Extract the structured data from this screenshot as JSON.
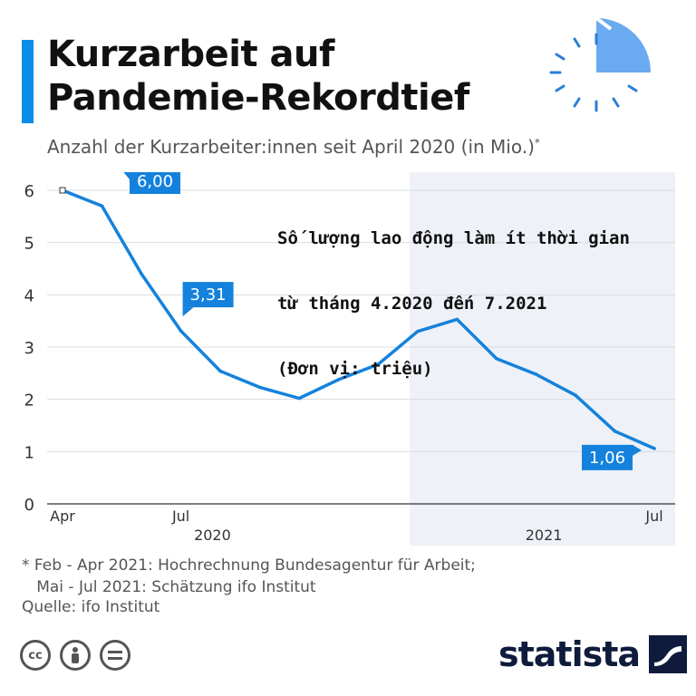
{
  "header": {
    "title_line1": "Kurzarbeit auf",
    "title_line2": "Pandemie-Rekordtief",
    "subtitle": "Anzahl der Kurzarbeiter:innen seit April 2020 (in Mio.)",
    "subtitle_mark": "*"
  },
  "annotation": {
    "line1": "Số lượng lao động làm ít thời gian",
    "line2": "từ tháng 4.2020 đến 7.2021",
    "line3": "(Đơn vị: triệu)"
  },
  "colors": {
    "line": "#1482dc",
    "accent": "#0c8ce9",
    "highlight_band": "#eef1f7",
    "brand": "#0f1b3d"
  },
  "chart_data": {
    "type": "line",
    "x": [
      "Apr 2020",
      "May 2020",
      "Jun 2020",
      "Jul 2020",
      "Aug 2020",
      "Sep 2020",
      "Oct 2020",
      "Nov 2020",
      "Dec 2020",
      "Jan 2021",
      "Feb 2021",
      "Mar 2021",
      "Apr 2021",
      "May 2021",
      "Jun 2021",
      "Jul 2021"
    ],
    "series": [
      {
        "values": [
          6.0,
          5.7,
          4.4,
          3.31,
          2.54,
          2.23,
          2.02,
          2.38,
          2.67,
          3.3,
          3.53,
          2.78,
          2.48,
          2.08,
          1.39,
          1.06
        ]
      }
    ],
    "ylim": [
      0,
      6
    ],
    "yticks": [
      "0",
      "1",
      "2",
      "3",
      "4",
      "5",
      "6"
    ],
    "xtick_labels": [
      {
        "index": 0,
        "label": "Apr"
      },
      {
        "index": 3,
        "label": "Jul"
      },
      {
        "index": 15,
        "label": "Jul"
      }
    ],
    "year_labels": [
      {
        "center_index": 3.8,
        "label": "2020"
      },
      {
        "center_index": 12.2,
        "label": "2021"
      }
    ],
    "highlight_start_index": 8.8,
    "data_labels": [
      {
        "index": 0,
        "label": "6,00"
      },
      {
        "index": 3,
        "label": "3,31"
      },
      {
        "index": 15,
        "label": "1,06"
      }
    ],
    "grid": true
  },
  "footnote": {
    "line1": "* Feb - Apr 2021: Hochrechnung Bundesagentur für Arbeit;",
    "line2": "   Mai - Jul 2021: Schätzung ifo Institut"
  },
  "source": "Quelle: ifo Institut",
  "license_icons": [
    "cc-icon",
    "person-icon",
    "equals-icon"
  ],
  "brand": {
    "name": "statista"
  }
}
